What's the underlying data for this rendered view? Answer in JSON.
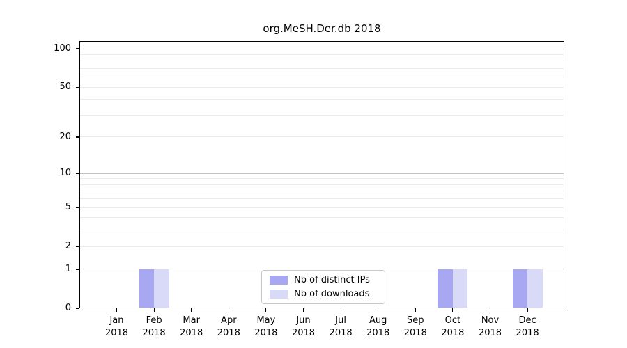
{
  "chart_data": {
    "type": "bar",
    "title": "org.MeSH.Der.db 2018",
    "x_categories": [
      {
        "month": "Jan",
        "year": "2018"
      },
      {
        "month": "Feb",
        "year": "2018"
      },
      {
        "month": "Mar",
        "year": "2018"
      },
      {
        "month": "Apr",
        "year": "2018"
      },
      {
        "month": "May",
        "year": "2018"
      },
      {
        "month": "Jun",
        "year": "2018"
      },
      {
        "month": "Jul",
        "year": "2018"
      },
      {
        "month": "Aug",
        "year": "2018"
      },
      {
        "month": "Sep",
        "year": "2018"
      },
      {
        "month": "Oct",
        "year": "2018"
      },
      {
        "month": "Nov",
        "year": "2018"
      },
      {
        "month": "Dec",
        "year": "2018"
      }
    ],
    "series": [
      {
        "name": "Nb of distinct IPs",
        "color": "#a8a8f2",
        "values": [
          0,
          1,
          0,
          0,
          0,
          0,
          0,
          0,
          0,
          1,
          0,
          1
        ]
      },
      {
        "name": "Nb of downloads",
        "color": "#d9d9f8",
        "values": [
          0,
          1,
          0,
          0,
          0,
          0,
          0,
          0,
          0,
          1,
          0,
          1
        ]
      }
    ],
    "y_axis": {
      "scale": "log1p",
      "ticks": [
        0,
        1,
        2,
        5,
        10,
        20,
        50,
        100
      ],
      "max": 100
    },
    "gridlines": {
      "major": [
        1,
        10,
        100
      ],
      "minor": [
        2,
        3,
        4,
        5,
        6,
        7,
        8,
        9,
        20,
        30,
        40,
        50,
        60,
        70,
        80,
        90
      ]
    },
    "legend": {
      "position": "bottom-center"
    },
    "colors": {
      "grid_major": "#c2c2c2",
      "grid_minor": "#eaeaea",
      "axis": "#000000",
      "background": "#ffffff"
    }
  }
}
